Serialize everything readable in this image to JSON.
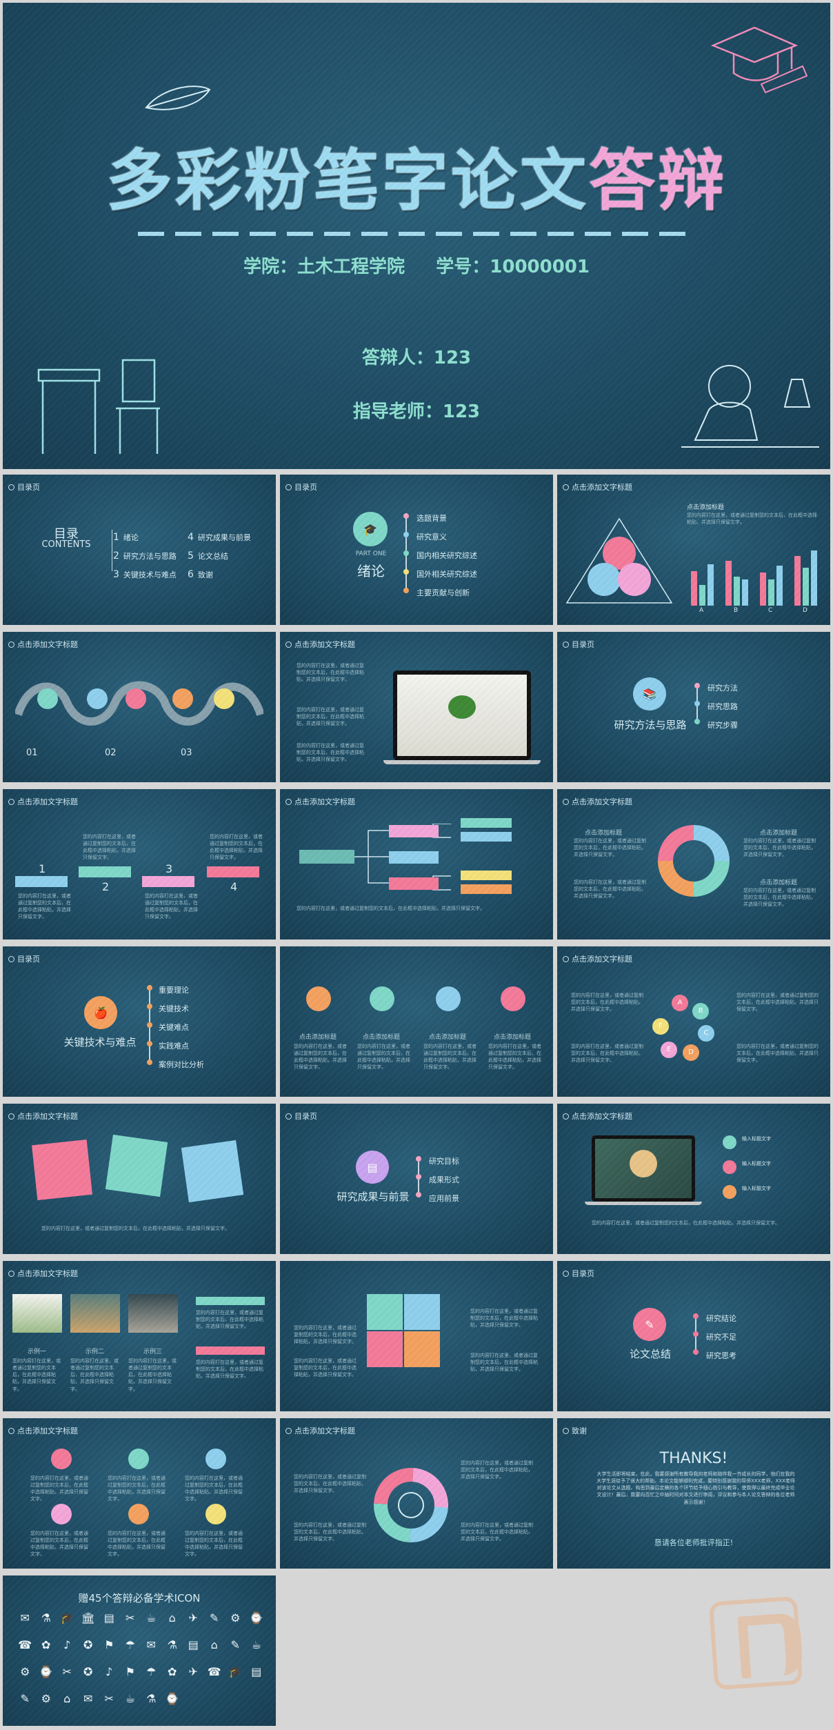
{
  "cover": {
    "title_main": "多彩粉笔字论文",
    "title_accent": "答辩",
    "school_line": "学院：土木工程学院     学号：10000001",
    "defender": "答辩人：123",
    "advisor": "指导老师：123"
  },
  "common": {
    "toc_header": "目录页",
    "click_title": "点击添加文字标题",
    "click_heading": "点击添加标题",
    "body_text": "您的内容打在这里，或者通过复制您的文本后，在此框中选择粘贴，并选择只保留文字。"
  },
  "toc": {
    "title_cn": "目录",
    "title_en": "CONTENTS",
    "items": [
      {
        "num": "1",
        "label": "绪论"
      },
      {
        "num": "2",
        "label": "研究方法与思路"
      },
      {
        "num": "3",
        "label": "关键技术与难点"
      },
      {
        "num": "4",
        "label": "研究成果与前景"
      },
      {
        "num": "5",
        "label": "论文总结"
      },
      {
        "num": "6",
        "label": "致谢"
      }
    ]
  },
  "part1": {
    "part_en": "PART ONE",
    "title": "绪论",
    "items": [
      "选题背景",
      "研究意义",
      "国内相关研究综述",
      "国外相关研究综述",
      "主要贡献与创新"
    ]
  },
  "bars_chart": {
    "type": "bar",
    "categories": [
      "A",
      "B",
      "C",
      "D"
    ],
    "series": [
      {
        "values": [
          50,
          65,
          48,
          72
        ]
      },
      {
        "values": [
          30,
          42,
          38,
          55
        ]
      },
      {
        "values": [
          60,
          38,
          58,
          80
        ]
      }
    ]
  },
  "wave_steps": [
    "01",
    "02",
    "03"
  ],
  "part2": {
    "title": "研究方法与思路",
    "items": [
      "研究方法",
      "研究思路",
      "研究步骤"
    ]
  },
  "stairs": [
    "1",
    "2",
    "3",
    "4"
  ],
  "part3": {
    "title": "关键技术与难点",
    "items": [
      "重要理论",
      "关键技术",
      "关键难点",
      "实践难点",
      "案例对比分析"
    ]
  },
  "flower_letters": [
    "A",
    "B",
    "C",
    "D",
    "E",
    "F"
  ],
  "part4": {
    "title": "研究成果与前景",
    "items": [
      "研究目标",
      "成果形式",
      "应用前景"
    ]
  },
  "laptop_items": [
    "输入标题文字",
    "输入标题文字",
    "输入标题文字"
  ],
  "cases": [
    "示例一",
    "示例二",
    "示例三"
  ],
  "part5": {
    "title": "论文总结",
    "items": [
      "研究结论",
      "研究不足",
      "研究思考"
    ]
  },
  "thanks": {
    "header": "致谢",
    "title": "THANKS!",
    "body": "大学生活即将结束，在此，我要感谢所有教导我的老师和陪伴我一齐成长的同学，他们在我的大学生涯给予了很大的帮助。本论文能够顺利完成，要特别感谢我的导师XXX老师，XXX老师对该论文从选题、构思到最后定稿的各个环节给予细心指引与教导，使我得以最终完成毕业论文设计！最后，我要向百忙之中抽时间对本文进行审阅，评议和参与本人论文答辩的各位老师表示感谢！",
    "closing": "恳请各位老师批评指正!"
  },
  "icons_slide": {
    "title": "赠45个答辩必备学术ICON"
  },
  "colors": {
    "pink": "#f47a9a",
    "teal": "#7fd8c8",
    "blue": "#8fd0ee",
    "yellow": "#f4e27a",
    "orange": "#f4a160",
    "purple": "#c9a3f0"
  }
}
